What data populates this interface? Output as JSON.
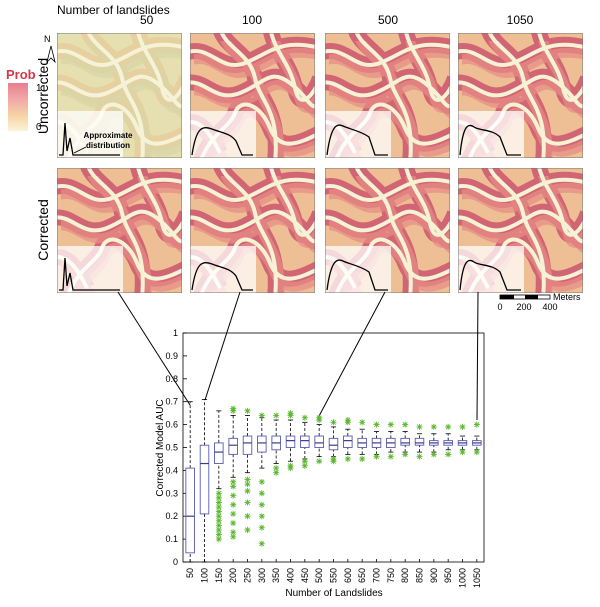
{
  "maps": {
    "header": "Number of landslides",
    "columns": [
      "50",
      "100",
      "500",
      "1050"
    ],
    "rows": [
      "Uncorrected",
      "Corrected"
    ],
    "north": "N",
    "legend": {
      "title": "Prob",
      "high": "1",
      "low": "0"
    },
    "annotation": "Approximate distribution",
    "scale": {
      "ticks": [
        "0",
        "200",
        "400"
      ],
      "unit": "Meters"
    }
  },
  "chart_data": {
    "type": "box",
    "ylabel": "Corrected Model AUC",
    "xlabel": "Number of Landslides",
    "categories": [
      "50",
      "100",
      "150",
      "200",
      "250",
      "300",
      "350",
      "400",
      "450",
      "500",
      "550",
      "600",
      "650",
      "700",
      "750",
      "800",
      "850",
      "900",
      "950",
      "1000",
      "1050"
    ],
    "ylim": [
      0,
      1
    ],
    "yticks": [
      0,
      0.1,
      0.2,
      0.3,
      0.4,
      0.5,
      0.6,
      0.7,
      0.8,
      0.9,
      1
    ],
    "box_color": "#5a5ab4",
    "median_color": "#3c3c8c",
    "outlier_color": "#5cb830",
    "boxes": [
      {
        "low": 0.0,
        "q1": 0.04,
        "median": 0.2,
        "q3": 0.41,
        "high": 0.7,
        "outliers": []
      },
      {
        "low": 0.0,
        "q1": 0.21,
        "median": 0.43,
        "q3": 0.51,
        "high": 0.71,
        "outliers": []
      },
      {
        "low": 0.32,
        "q1": 0.43,
        "median": 0.48,
        "q3": 0.52,
        "high": 0.66,
        "outliers": [
          0.1,
          0.12,
          0.14,
          0.16,
          0.18,
          0.2,
          0.22,
          0.24,
          0.26,
          0.28,
          0.3
        ]
      },
      {
        "low": 0.37,
        "q1": 0.47,
        "median": 0.51,
        "q3": 0.54,
        "high": 0.64,
        "outliers": [
          0.11,
          0.13,
          0.17,
          0.21,
          0.25,
          0.29,
          0.33,
          0.35,
          0.66,
          0.67
        ]
      },
      {
        "low": 0.39,
        "q1": 0.47,
        "median": 0.52,
        "q3": 0.55,
        "high": 0.64,
        "outliers": [
          0.14,
          0.2,
          0.26,
          0.31,
          0.34,
          0.36,
          0.66
        ]
      },
      {
        "low": 0.41,
        "q1": 0.48,
        "median": 0.52,
        "q3": 0.55,
        "high": 0.63,
        "outliers": [
          0.08,
          0.15,
          0.2,
          0.25,
          0.3,
          0.35,
          0.64
        ]
      },
      {
        "low": 0.43,
        "q1": 0.49,
        "median": 0.52,
        "q3": 0.55,
        "high": 0.62,
        "outliers": [
          0.39,
          0.41,
          0.64
        ]
      },
      {
        "low": 0.44,
        "q1": 0.5,
        "median": 0.53,
        "q3": 0.55,
        "high": 0.62,
        "outliers": [
          0.41,
          0.42,
          0.64,
          0.65
        ]
      },
      {
        "low": 0.45,
        "q1": 0.5,
        "median": 0.53,
        "q3": 0.55,
        "high": 0.61,
        "outliers": [
          0.42,
          0.44,
          0.63
        ]
      },
      {
        "low": 0.46,
        "q1": 0.5,
        "median": 0.52,
        "q3": 0.55,
        "high": 0.6,
        "outliers": [
          0.44,
          0.62,
          0.63
        ]
      },
      {
        "low": 0.46,
        "q1": 0.49,
        "median": 0.51,
        "q3": 0.54,
        "high": 0.59,
        "outliers": [
          0.44,
          0.45,
          0.61
        ]
      },
      {
        "low": 0.47,
        "q1": 0.5,
        "median": 0.53,
        "q3": 0.55,
        "high": 0.58,
        "outliers": [
          0.45,
          0.61,
          0.62
        ]
      },
      {
        "low": 0.47,
        "q1": 0.5,
        "median": 0.52,
        "q3": 0.54,
        "high": 0.58,
        "outliers": [
          0.45,
          0.61
        ]
      },
      {
        "low": 0.47,
        "q1": 0.5,
        "median": 0.52,
        "q3": 0.54,
        "high": 0.57,
        "outliers": [
          0.46,
          0.6
        ]
      },
      {
        "low": 0.48,
        "q1": 0.5,
        "median": 0.52,
        "q3": 0.54,
        "high": 0.57,
        "outliers": [
          0.46,
          0.6
        ]
      },
      {
        "low": 0.48,
        "q1": 0.51,
        "median": 0.52,
        "q3": 0.54,
        "high": 0.57,
        "outliers": [
          0.47,
          0.6
        ]
      },
      {
        "low": 0.48,
        "q1": 0.51,
        "median": 0.52,
        "q3": 0.54,
        "high": 0.56,
        "outliers": [
          0.46,
          0.59
        ]
      },
      {
        "low": 0.48,
        "q1": 0.51,
        "median": 0.52,
        "q3": 0.53,
        "high": 0.56,
        "outliers": [
          0.47,
          0.59
        ]
      },
      {
        "low": 0.49,
        "q1": 0.51,
        "median": 0.52,
        "q3": 0.53,
        "high": 0.56,
        "outliers": [
          0.47,
          0.59
        ]
      },
      {
        "low": 0.49,
        "q1": 0.51,
        "median": 0.52,
        "q3": 0.53,
        "high": 0.55,
        "outliers": [
          0.48,
          0.59
        ]
      },
      {
        "low": 0.49,
        "q1": 0.51,
        "median": 0.52,
        "q3": 0.53,
        "high": 0.55,
        "outliers": [
          0.48,
          0.6
        ]
      }
    ]
  }
}
